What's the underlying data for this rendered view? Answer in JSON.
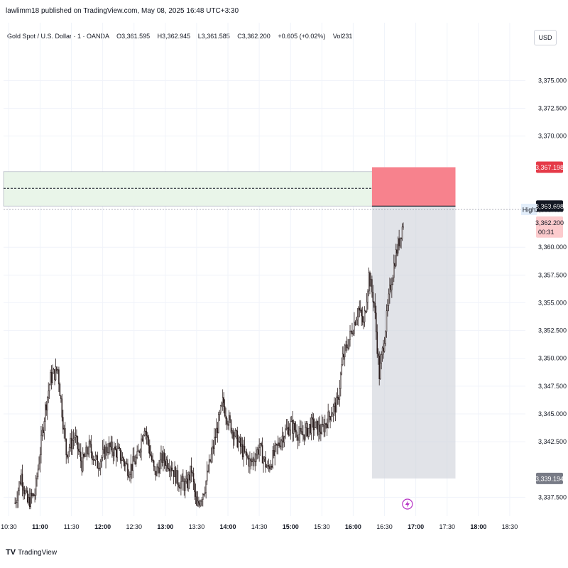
{
  "publisher_line": "lawlimm18 published on TradingView.com, May 08, 2025 16:48 UTC+3:30",
  "legend": {
    "symbol": "Gold Spot / U.S. Dollar · 1 · OANDA",
    "open": "O3,361.595",
    "high": "H3,362.945",
    "low": "L3,361.585",
    "close": "C3,362.200",
    "change": "+0.605 (+0.02%)",
    "volume": "Vol231"
  },
  "currency": "USD",
  "footer": {
    "logo_glyph": "TV",
    "brand": "TradingView"
  },
  "colors": {
    "up": "#ffffff",
    "down": "#2a1d1d",
    "wick": "#2a1d1d",
    "profit_zone": "#e9f5e9",
    "stop_zone": "#f7828d",
    "risk_box": "#d1d4dc",
    "price_tag_red": "#e53a48",
    "price_tag_black": "#131722",
    "price_tag_gray": "#787b86",
    "live_tag": "#fccbcd",
    "high_tag": "#e3eefa"
  },
  "chart_data": {
    "type": "candlestick",
    "x_range": [
      "10:25",
      "18:45"
    ],
    "y_range": [
      3335.8,
      3380.2
    ],
    "x_ticks": [
      {
        "label": "10:30",
        "bold": false
      },
      {
        "label": "11:00",
        "bold": true
      },
      {
        "label": "11:30",
        "bold": false
      },
      {
        "label": "12:00",
        "bold": true
      },
      {
        "label": "12:30",
        "bold": false
      },
      {
        "label": "13:00",
        "bold": true
      },
      {
        "label": "13:30",
        "bold": false
      },
      {
        "label": "14:00",
        "bold": true
      },
      {
        "label": "14:30",
        "bold": false
      },
      {
        "label": "15:00",
        "bold": true
      },
      {
        "label": "15:30",
        "bold": false
      },
      {
        "label": "16:00",
        "bold": true
      },
      {
        "label": "16:30",
        "bold": false
      },
      {
        "label": "17:00",
        "bold": true
      },
      {
        "label": "17:30",
        "bold": false
      },
      {
        "label": "18:00",
        "bold": true
      },
      {
        "label": "18:30",
        "bold": false
      }
    ],
    "y_ticks": [
      {
        "value": 3375.0,
        "label": "3,375.000"
      },
      {
        "value": 3372.5,
        "label": "3,372.500"
      },
      {
        "value": 3370.0,
        "label": "3,370.000"
      },
      {
        "value": 3360.0,
        "label": "3,360.000"
      },
      {
        "value": 3357.5,
        "label": "3,357.500"
      },
      {
        "value": 3355.0,
        "label": "3,355.000"
      },
      {
        "value": 3352.5,
        "label": "3,352.500"
      },
      {
        "value": 3350.0,
        "label": "3,350.000"
      },
      {
        "value": 3347.5,
        "label": "3,347.500"
      },
      {
        "value": 3345.0,
        "label": "3,345.000"
      },
      {
        "value": 3342.5,
        "label": "3,342.500"
      },
      {
        "value": 3337.5,
        "label": "3,337.500"
      }
    ],
    "position": {
      "start": "16:18",
      "end": "17:38",
      "entry": 3363.698,
      "stop": 3367.198,
      "target": 3339.194,
      "entry_label": "3,363.698",
      "stop_label": "3,367.198",
      "target_label": "3,339.194"
    },
    "zone": {
      "start": "10:25",
      "end": "16:55",
      "top": 3366.8,
      "bottom": 3363.7,
      "mid": 3365.3
    },
    "high_line": {
      "value": 3363.4,
      "label": "3,363.400",
      "tag": "High"
    },
    "current_price": {
      "value": 3362.2,
      "label": "3,362.200",
      "countdown": "00:31"
    },
    "series_path": [
      [
        "10:36",
        3337.0
      ],
      [
        "10:42",
        3339.5
      ],
      [
        "10:48",
        3337.0
      ],
      [
        "10:55",
        3337.8
      ],
      [
        "11:05",
        3345.5
      ],
      [
        "11:10",
        3348.2
      ],
      [
        "11:17",
        3349.0
      ],
      [
        "11:25",
        3341.5
      ],
      [
        "11:33",
        3343.0
      ],
      [
        "11:40",
        3340.5
      ],
      [
        "11:47",
        3342.0
      ],
      [
        "11:55",
        3340.5
      ],
      [
        "12:05",
        3342.0
      ],
      [
        "12:15",
        3341.5
      ],
      [
        "12:25",
        3340.0
      ],
      [
        "12:33",
        3341.0
      ],
      [
        "12:40",
        3344.0
      ],
      [
        "12:50",
        3339.5
      ],
      [
        "12:57",
        3341.0
      ],
      [
        "13:05",
        3340.5
      ],
      [
        "13:12",
        3339.0
      ],
      [
        "13:20",
        3338.5
      ],
      [
        "13:25",
        3340.0
      ],
      [
        "13:30",
        3336.5
      ],
      [
        "13:38",
        3338.5
      ],
      [
        "13:48",
        3343.0
      ],
      [
        "13:55",
        3346.0
      ],
      [
        "14:00",
        3344.5
      ],
      [
        "14:07",
        3343.0
      ],
      [
        "14:15",
        3341.5
      ],
      [
        "14:22",
        3340.5
      ],
      [
        "14:30",
        3342.0
      ],
      [
        "14:38",
        3340.0
      ],
      [
        "14:45",
        3341.5
      ],
      [
        "14:52",
        3343.0
      ],
      [
        "15:00",
        3344.0
      ],
      [
        "15:10",
        3343.0
      ],
      [
        "15:20",
        3344.0
      ],
      [
        "15:30",
        3343.5
      ],
      [
        "15:38",
        3345.0
      ],
      [
        "15:45",
        3346.0
      ],
      [
        "15:50",
        3350.0
      ],
      [
        "15:57",
        3352.0
      ],
      [
        "16:05",
        3354.5
      ],
      [
        "16:10",
        3353.0
      ],
      [
        "16:15",
        3357.5
      ],
      [
        "16:20",
        3355.0
      ],
      [
        "16:25",
        3348.5
      ],
      [
        "16:30",
        3352.0
      ],
      [
        "16:35",
        3356.0
      ],
      [
        "16:40",
        3359.0
      ],
      [
        "16:45",
        3361.0
      ],
      [
        "16:48",
        3362.2
      ]
    ]
  }
}
